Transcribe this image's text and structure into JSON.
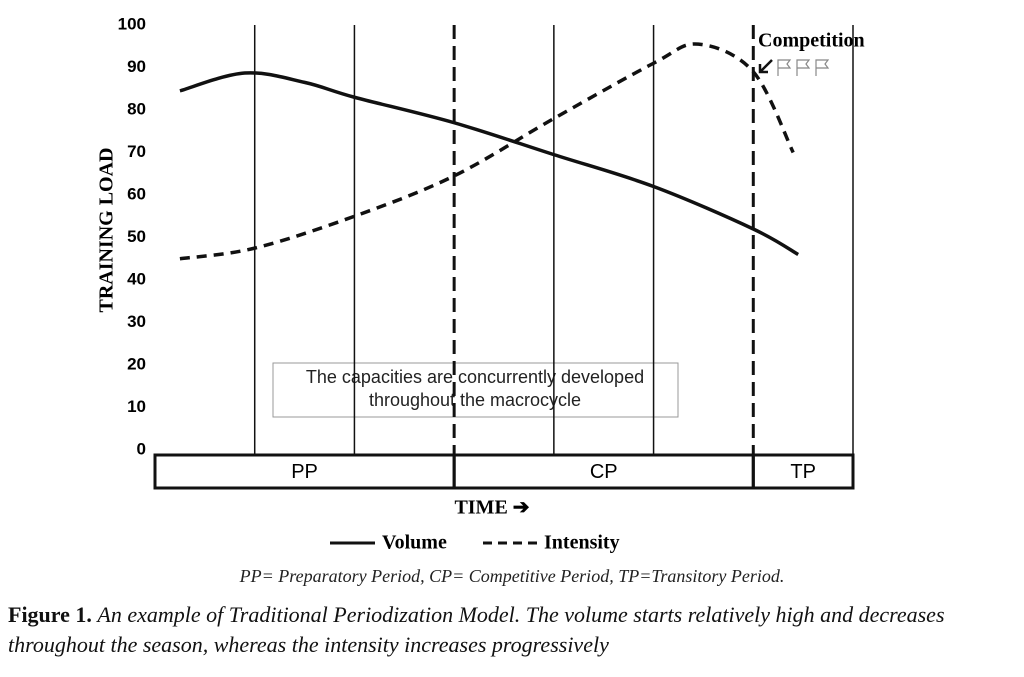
{
  "chart_data": {
    "type": "line",
    "y_label": "TRAINING LOAD",
    "x_label": "TIME ➔",
    "xlim": [
      0,
      7
    ],
    "ylim": [
      0,
      100
    ],
    "yticks": [
      0,
      10,
      20,
      30,
      40,
      50,
      60,
      70,
      80,
      90,
      100
    ],
    "xticks": [
      1,
      2,
      3,
      4,
      5,
      6,
      7
    ],
    "dashed_xticks": [
      3,
      6
    ],
    "grid": true,
    "periods": [
      {
        "label": "PP",
        "start": 0,
        "end": 3
      },
      {
        "label": "CP",
        "start": 3,
        "end": 6
      },
      {
        "label": "TP",
        "start": 6,
        "end": 7
      }
    ],
    "series": [
      {
        "name": "Volume",
        "color": "#111111",
        "dash": "solid",
        "x": [
          0.25,
          0.9,
          1.5,
          2,
          3,
          4,
          5,
          6,
          6.45
        ],
        "values": [
          84.5,
          88.7,
          86.5,
          83,
          77,
          69.5,
          62,
          52,
          46
        ]
      },
      {
        "name": "Intensity",
        "color": "#111111",
        "dash": "dashed",
        "x": [
          0.25,
          1,
          2,
          3,
          4,
          5,
          5.45,
          6,
          6.4
        ],
        "values": [
          45,
          47.5,
          55,
          64.5,
          78,
          91,
          95.5,
          89,
          70
        ]
      }
    ],
    "annotation": {
      "lines": [
        "The capacities are concurrently developed",
        "throughout the macrocycle"
      ]
    },
    "competition": "Competition",
    "legend_note": "PP= Preparatory Period, CP= Competitive Period, TP=Transitory Period.",
    "caption_label": "Figure 1.",
    "caption_text": "An example of Traditional Periodization Model. The volume starts relatively high and decreases throughout the season, whereas the intensity increases progressively"
  }
}
